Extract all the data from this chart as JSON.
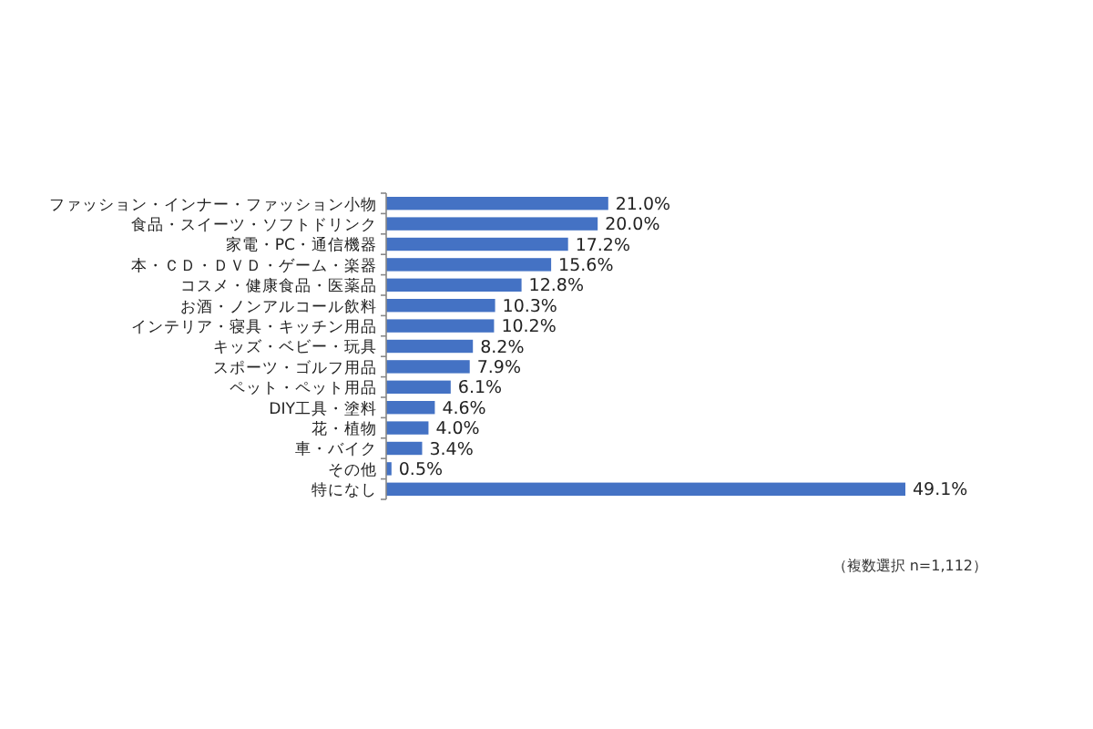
{
  "chart_data": {
    "type": "bar",
    "orientation": "horizontal",
    "categories": [
      "ファッション・インナー・ファッション小物",
      "食品・スイーツ・ソフトドリンク",
      "家電・PC・通信機器",
      "本・ＣＤ・ＤＶＤ・ゲーム・楽器",
      "コスメ・健康食品・医薬品",
      "お酒・ノンアルコール飲料",
      "インテリア・寝具・キッチン用品",
      "キッズ・ベビー・玩具",
      "スポーツ・ゴルフ用品",
      "ペット・ペット用品",
      "DIY工具・塗料",
      "花・植物",
      "車・バイク",
      "その他",
      "特になし"
    ],
    "values": [
      21.0,
      20.0,
      17.2,
      15.6,
      12.8,
      10.3,
      10.2,
      8.2,
      7.9,
      6.1,
      4.6,
      4.0,
      3.4,
      0.5,
      49.1
    ],
    "value_labels": [
      "21.0%",
      "20.0%",
      "17.2%",
      "15.6%",
      "12.8%",
      "10.3%",
      "10.2%",
      "8.2%",
      "7.9%",
      "6.1%",
      "4.6%",
      "4.0%",
      "3.4%",
      "0.5%",
      "49.1%"
    ],
    "color": "#4472c4",
    "annotations": [
      "（複数選択 n=1,112）"
    ]
  }
}
